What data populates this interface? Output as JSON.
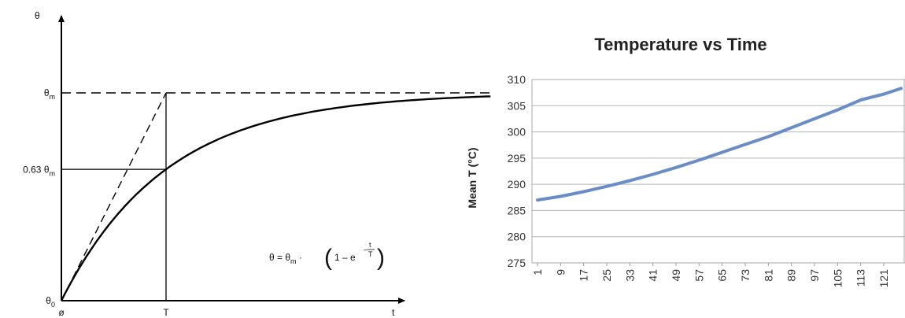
{
  "chart_data": [
    {
      "type": "line",
      "title": "",
      "xlabel": "t",
      "ylabel": "θ",
      "x_ticks": [
        {
          "label": "ø",
          "x": 0
        },
        {
          "label": "T",
          "x": 1
        }
      ],
      "y_ticks": [
        {
          "label": "θ",
          "sub": "0",
          "y": 0
        },
        {
          "label": "0.63 θ",
          "sub": "m",
          "y": 0.63
        },
        {
          "label": "θ",
          "sub": "m",
          "y": 1
        }
      ],
      "xlim": [
        0,
        4.1
      ],
      "ylim": [
        0,
        1.36
      ],
      "time_constant": 1,
      "final_value": 1,
      "formula": {
        "lhs": "θ = θ",
        "sub": "m",
        "middle": " · ",
        "paren_open": "(",
        "inner": "1 – e",
        "exp_sign": "–",
        "exp_num": "t",
        "exp_den": "T",
        "paren_close": ")"
      }
    },
    {
      "type": "line",
      "title": "Temperature vs Time",
      "xlabel": "",
      "ylabel": "Mean T (°C)",
      "ylim": [
        275,
        310
      ],
      "y_ticks": [
        275,
        280,
        285,
        290,
        295,
        300,
        305,
        310
      ],
      "x_ticks": [
        1,
        9,
        17,
        25,
        33,
        41,
        49,
        57,
        65,
        73,
        81,
        89,
        97,
        105,
        113,
        121
      ],
      "xlim": [
        1,
        127
      ],
      "grid": true,
      "line_color": "#6a8cc7",
      "series": [
        {
          "x": [
            1,
            9,
            17,
            25,
            33,
            41,
            49,
            57,
            65,
            73,
            81,
            89,
            97,
            105,
            113,
            121,
            127
          ],
          "y": [
            287,
            287.7,
            288.6,
            289.6,
            290.7,
            291.9,
            293.2,
            294.6,
            296.1,
            297.6,
            299.1,
            300.8,
            302.5,
            304.2,
            306.1,
            307.2,
            308.3
          ]
        }
      ]
    }
  ]
}
